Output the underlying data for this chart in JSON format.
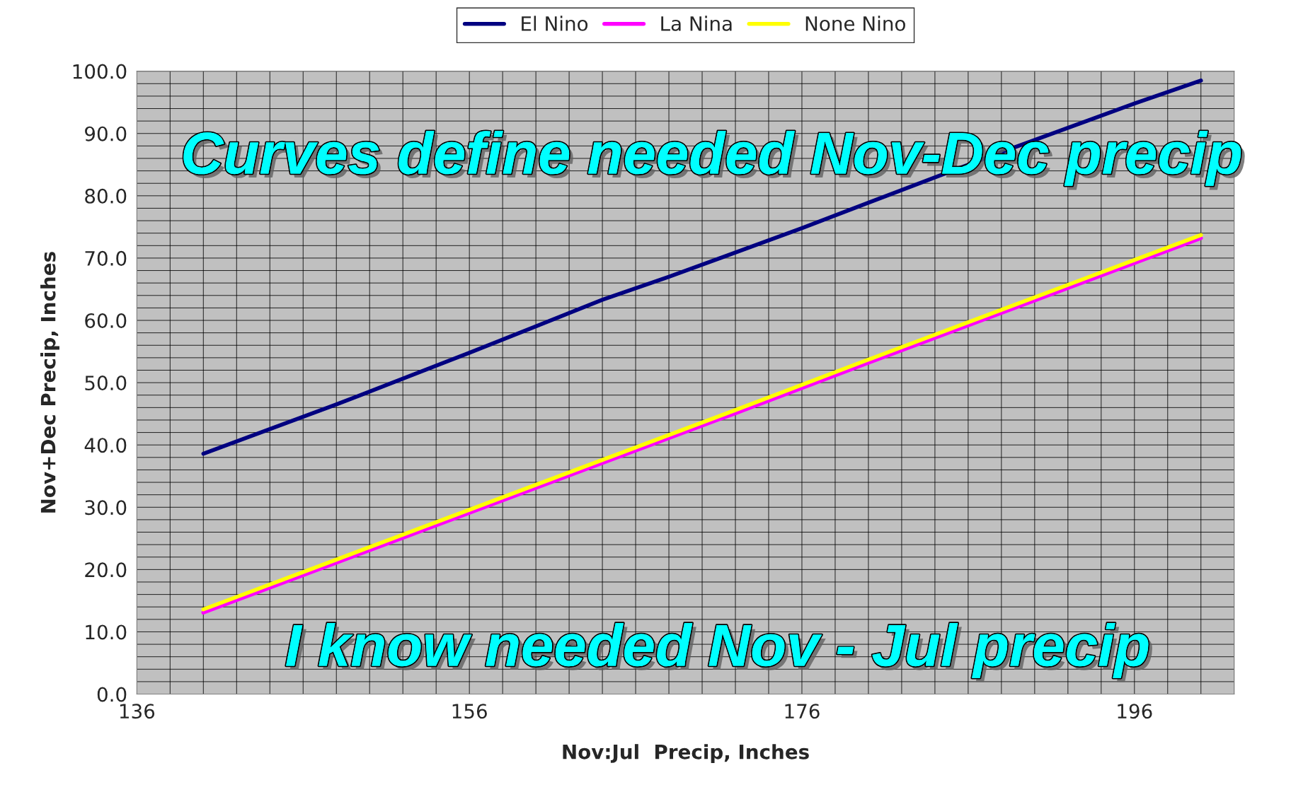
{
  "chart_data": {
    "type": "line",
    "xlabel": "Nov:Jul  Precip, Inches",
    "ylabel": "Nov+Dec Precip, Inches",
    "xlim": [
      136,
      202
    ],
    "xticks": [
      136,
      156,
      176,
      196
    ],
    "ylim": [
      0,
      100
    ],
    "yticks": [
      {
        "value": 0,
        "label": "0.0"
      },
      {
        "value": 10,
        "label": "10.0"
      },
      {
        "value": 20,
        "label": "20.0"
      },
      {
        "value": 30,
        "label": "30.0"
      },
      {
        "value": 40,
        "label": "40.0"
      },
      {
        "value": 50,
        "label": "50.0"
      },
      {
        "value": 60,
        "label": "60.0"
      },
      {
        "value": 70,
        "label": "70.0"
      },
      {
        "value": 80,
        "label": "80.0"
      },
      {
        "value": 90,
        "label": "90.0"
      },
      {
        "value": 100,
        "label": "100.0"
      }
    ],
    "grid": true,
    "legend": "top",
    "marker": "none",
    "line_style": "solid",
    "series": [
      {
        "name": "El Nino",
        "color": "#000080",
        "x": [
          140,
          148,
          156,
          164,
          168,
          176,
          180,
          188,
          196,
          200
        ],
        "values": [
          38.6,
          46.5,
          54.8,
          63.3,
          67.0,
          74.8,
          78.9,
          87.0,
          94.8,
          98.5
        ]
      },
      {
        "name": "La Nina",
        "color": "#ff00ff",
        "x": [
          140,
          148,
          156,
          164,
          172,
          180,
          188,
          196,
          200
        ],
        "values": [
          13.1,
          21.1,
          29.1,
          37.1,
          45.1,
          53.2,
          61.2,
          69.2,
          73.2
        ]
      },
      {
        "name": "None Nino",
        "color": "#ffff00",
        "x": [
          140,
          148,
          156,
          164,
          172,
          180,
          188,
          196,
          200
        ],
        "values": [
          13.6,
          21.6,
          29.6,
          37.6,
          45.6,
          53.7,
          61.7,
          69.7,
          73.7
        ]
      }
    ],
    "annotations": [
      "Curves define needed Nov-Dec precip",
      "I know needed Nov - Jul precip"
    ]
  }
}
